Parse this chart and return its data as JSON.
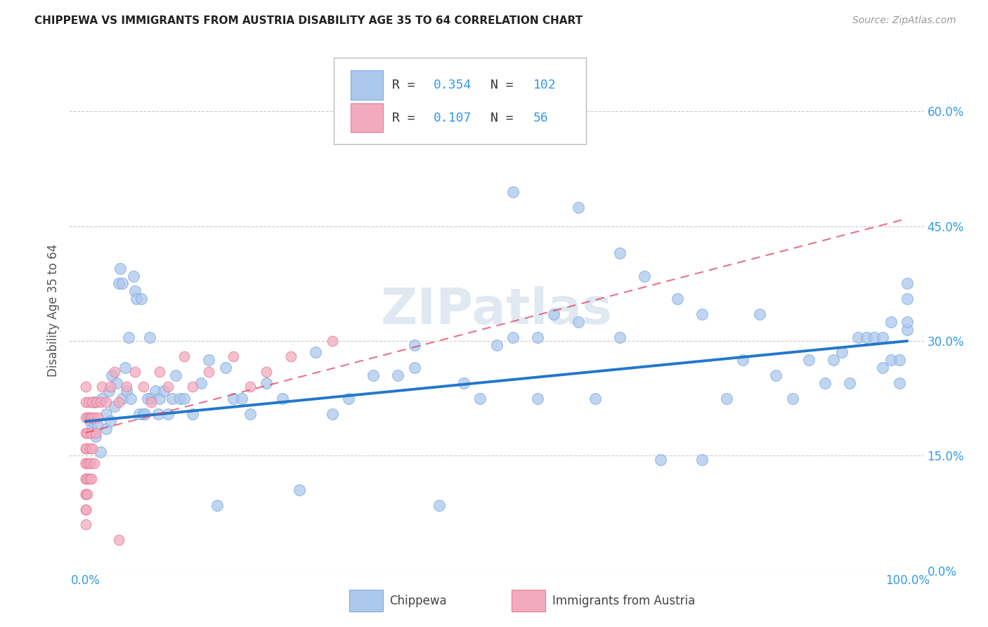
{
  "title": "CHIPPEWA VS IMMIGRANTS FROM AUSTRIA DISABILITY AGE 35 TO 64 CORRELATION CHART",
  "source": "Source: ZipAtlas.com",
  "ylabel": "Disability Age 35 to 64",
  "xlim": [
    -0.02,
    1.02
  ],
  "ylim": [
    0.0,
    0.68
  ],
  "yticks": [
    0.0,
    0.15,
    0.3,
    0.45,
    0.6
  ],
  "ytick_labels": [
    "0.0%",
    "15.0%",
    "30.0%",
    "45.0%",
    "60.0%"
  ],
  "xticks": [
    0.0,
    0.25,
    0.5,
    0.75,
    1.0
  ],
  "xtick_labels": [
    "0.0%",
    "",
    "",
    "",
    "100.0%"
  ],
  "chippewa_R": 0.354,
  "chippewa_N": 102,
  "austria_R": 0.107,
  "austria_N": 56,
  "chippewa_color": "#adc8ed",
  "chippewa_edge": "#7aaedf",
  "austria_color": "#f2abbe",
  "austria_edge": "#e87a99",
  "chippewa_line_color": "#2277cc",
  "austria_line_color": "#dd4466",
  "tick_color": "#3399ee",
  "watermark": "ZIPatlas",
  "background_color": "#ffffff",
  "grid_color": "#cccccc",
  "legend_blue": "#3399ee",
  "legend_pink": "#ee4477",
  "chippewa_x": [
    0.005,
    0.008,
    0.01,
    0.012,
    0.015,
    0.018,
    0.02,
    0.025,
    0.025,
    0.028,
    0.03,
    0.032,
    0.035,
    0.038,
    0.04,
    0.042,
    0.045,
    0.045,
    0.048,
    0.05,
    0.052,
    0.055,
    0.058,
    0.06,
    0.062,
    0.065,
    0.068,
    0.07,
    0.072,
    0.075,
    0.078,
    0.08,
    0.085,
    0.088,
    0.09,
    0.095,
    0.1,
    0.105,
    0.11,
    0.115,
    0.12,
    0.13,
    0.14,
    0.15,
    0.16,
    0.17,
    0.18,
    0.19,
    0.2,
    0.22,
    0.24,
    0.26,
    0.28,
    0.3,
    0.32,
    0.35,
    0.38,
    0.4,
    0.43,
    0.46,
    0.48,
    0.5,
    0.52,
    0.55,
    0.55,
    0.57,
    0.6,
    0.62,
    0.65,
    0.68,
    0.7,
    0.72,
    0.75,
    0.78,
    0.8,
    0.82,
    0.84,
    0.86,
    0.88,
    0.9,
    0.91,
    0.92,
    0.93,
    0.94,
    0.95,
    0.96,
    0.97,
    0.97,
    0.98,
    0.98,
    0.99,
    0.99,
    1.0,
    1.0,
    1.0,
    1.0,
    0.52,
    0.45,
    0.6,
    0.4,
    0.65,
    0.75
  ],
  "chippewa_y": [
    0.195,
    0.185,
    0.22,
    0.175,
    0.19,
    0.155,
    0.225,
    0.205,
    0.185,
    0.235,
    0.195,
    0.255,
    0.215,
    0.245,
    0.375,
    0.395,
    0.375,
    0.225,
    0.265,
    0.235,
    0.305,
    0.225,
    0.385,
    0.365,
    0.355,
    0.205,
    0.355,
    0.205,
    0.205,
    0.225,
    0.305,
    0.225,
    0.235,
    0.205,
    0.225,
    0.235,
    0.205,
    0.225,
    0.255,
    0.225,
    0.225,
    0.205,
    0.245,
    0.275,
    0.085,
    0.265,
    0.225,
    0.225,
    0.205,
    0.245,
    0.225,
    0.105,
    0.285,
    0.205,
    0.225,
    0.255,
    0.255,
    0.265,
    0.085,
    0.245,
    0.225,
    0.295,
    0.305,
    0.225,
    0.305,
    0.335,
    0.325,
    0.225,
    0.305,
    0.385,
    0.145,
    0.355,
    0.145,
    0.225,
    0.275,
    0.335,
    0.255,
    0.225,
    0.275,
    0.245,
    0.275,
    0.285,
    0.245,
    0.305,
    0.305,
    0.305,
    0.265,
    0.305,
    0.325,
    0.275,
    0.275,
    0.245,
    0.355,
    0.315,
    0.325,
    0.375,
    0.495,
    0.605,
    0.475,
    0.295,
    0.415,
    0.335
  ],
  "austria_x": [
    0.0,
    0.0,
    0.0,
    0.0,
    0.0,
    0.0,
    0.0,
    0.0,
    0.0,
    0.0,
    0.0,
    0.0,
    0.0,
    0.0,
    0.0,
    0.002,
    0.002,
    0.003,
    0.003,
    0.004,
    0.004,
    0.005,
    0.005,
    0.005,
    0.006,
    0.006,
    0.007,
    0.007,
    0.008,
    0.008,
    0.01,
    0.01,
    0.012,
    0.013,
    0.015,
    0.018,
    0.02,
    0.025,
    0.03,
    0.035,
    0.04,
    0.05,
    0.06,
    0.07,
    0.08,
    0.09,
    0.1,
    0.12,
    0.13,
    0.15,
    0.18,
    0.2,
    0.22,
    0.25,
    0.3,
    0.04
  ],
  "austria_y": [
    0.06,
    0.08,
    0.1,
    0.12,
    0.14,
    0.16,
    0.18,
    0.2,
    0.22,
    0.24,
    0.08,
    0.1,
    0.12,
    0.14,
    0.16,
    0.1,
    0.18,
    0.12,
    0.2,
    0.14,
    0.22,
    0.12,
    0.16,
    0.2,
    0.14,
    0.18,
    0.12,
    0.2,
    0.16,
    0.22,
    0.14,
    0.2,
    0.18,
    0.22,
    0.2,
    0.22,
    0.24,
    0.22,
    0.24,
    0.26,
    0.22,
    0.24,
    0.26,
    0.24,
    0.22,
    0.26,
    0.24,
    0.28,
    0.24,
    0.26,
    0.28,
    0.24,
    0.26,
    0.28,
    0.3,
    0.04
  ],
  "chippewa_line_x0": 0.0,
  "chippewa_line_y0": 0.195,
  "chippewa_line_x1": 1.0,
  "chippewa_line_y1": 0.3,
  "austria_line_x0": 0.0,
  "austria_line_y0": 0.18,
  "austria_line_x1": 1.0,
  "austria_line_y1": 0.46
}
